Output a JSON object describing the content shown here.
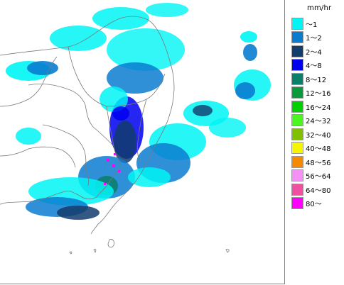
{
  "map": {
    "background_color": "#ffffff",
    "boundary_color": "#7a7a7a"
  },
  "legend": {
    "unit": "mm/hr",
    "items": [
      {
        "label": "～1",
        "color": "#00f5f5"
      },
      {
        "label": "1～2",
        "color": "#0a7cd0"
      },
      {
        "label": "2～4",
        "color": "#123c6c"
      },
      {
        "label": "4～8",
        "color": "#0000f0"
      },
      {
        "label": "8～12",
        "color": "#0a7f6a"
      },
      {
        "label": "12～16",
        "color": "#0a9a3a"
      },
      {
        "label": "16～24",
        "color": "#00d000"
      },
      {
        "label": "24～32",
        "color": "#4cf520"
      },
      {
        "label": "32～40",
        "color": "#80c000"
      },
      {
        "label": "40～48",
        "color": "#f5f500"
      },
      {
        "label": "48～56",
        "color": "#f58a00"
      },
      {
        "label": "56～64",
        "color": "#f590f5"
      },
      {
        "label": "64～80",
        "color": "#f050a0"
      },
      {
        "label": "80～",
        "color": "#ff00ff"
      }
    ]
  }
}
